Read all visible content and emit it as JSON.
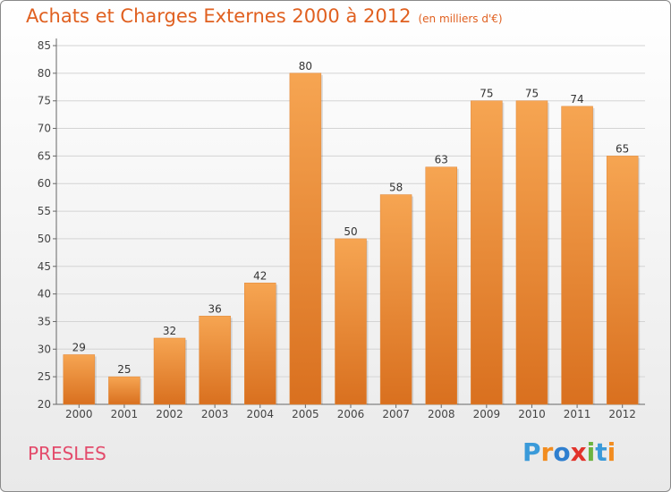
{
  "header": {
    "title": "Achats et Charges Externes 2000 à 2012",
    "subtitle": "(en milliers d'€)"
  },
  "footer": {
    "place": "PRESLES",
    "logo": [
      "P",
      "r",
      "o",
      "x",
      "i",
      "t",
      "i"
    ],
    "logo_colors": [
      "#3a9ad9",
      "#f28c1f",
      "#2f7fcf",
      "#e2332b",
      "#6cb33f",
      "#3a9ad9",
      "#f28c1f"
    ]
  },
  "chart_data": {
    "type": "bar",
    "categories": [
      "2000",
      "2001",
      "2002",
      "2003",
      "2004",
      "2005",
      "2006",
      "2007",
      "2008",
      "2009",
      "2010",
      "2011",
      "2012"
    ],
    "values": [
      29,
      25,
      32,
      36,
      42,
      80,
      50,
      58,
      63,
      75,
      75,
      74,
      65
    ],
    "ylim": [
      20,
      85
    ],
    "yticks": [
      20,
      25,
      30,
      35,
      40,
      45,
      50,
      55,
      60,
      65,
      70,
      75,
      80,
      85
    ],
    "grid": true,
    "bar_color_top": "#f6a552",
    "bar_color_bottom": "#d9701f"
  }
}
